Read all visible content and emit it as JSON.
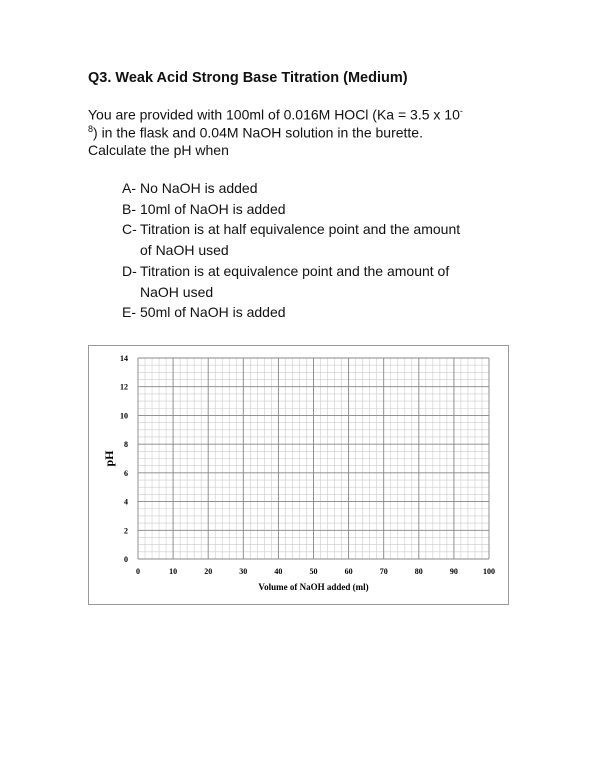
{
  "header": {
    "title": "Q3. Weak Acid Strong Base Titration (Medium)"
  },
  "intro": {
    "line1": "You are provided with 100ml of 0.016M HOCl (Ka = 3.5 x 10",
    "sup1": "-",
    "sup2": "8",
    "line2": ") in the flask and 0.04M NaOH solution in the burette.",
    "line3": "Calculate the pH when"
  },
  "items": [
    {
      "label": "A-",
      "lines": [
        "No NaOH is added"
      ]
    },
    {
      "label": "B-",
      "lines": [
        "10ml of NaOH is added"
      ]
    },
    {
      "label": "C-",
      "lines": [
        "Titration is at half equivalence point and the amount",
        "of NaOH used"
      ]
    },
    {
      "label": "D-",
      "lines": [
        "Titration is at equivalence point and the amount of",
        "NaOH used"
      ]
    },
    {
      "label": "E-",
      "lines": [
        "50ml of NaOH is added"
      ]
    }
  ],
  "chart_data": {
    "type": "grid",
    "x_label": "Volume of NaOH added (ml)",
    "y_label": "pH",
    "xlim": [
      0,
      100
    ],
    "xticks": [
      0,
      10,
      20,
      30,
      40,
      50,
      60,
      70,
      80,
      90,
      100
    ],
    "ylim": [
      0,
      14
    ],
    "yticks": [
      0,
      2,
      4,
      6,
      8,
      10,
      12,
      14
    ],
    "grid": true
  }
}
